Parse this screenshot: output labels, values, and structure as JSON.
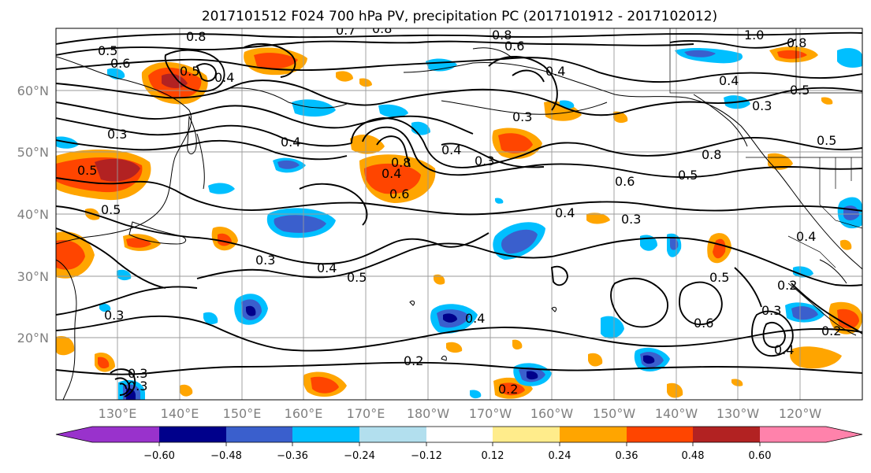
{
  "title": "2017101512 F024 700 hPa PV, precipitation PC (2017101912 - 2017102012)",
  "lat_labels": [
    "60°N",
    "50°N",
    "40°N",
    "30°N",
    "20°N"
  ],
  "lon_labels": [
    "130°E",
    "140°E",
    "150°E",
    "160°E",
    "170°E",
    "180°W",
    "170°W",
    "160°W",
    "150°W",
    "140°W",
    "130°W",
    "120°W"
  ],
  "colorbar": {
    "tick_labels": [
      "−0.60",
      "−0.48",
      "−0.36",
      "−0.24",
      "−0.12",
      "0.12",
      "0.24",
      "0.36",
      "0.48",
      "0.60"
    ],
    "colors": [
      "#9932cc",
      "#00008b",
      "#3a5fcd",
      "#00bfff",
      "#b2dfee",
      "#ffffff",
      "#ffec8b",
      "#ffa500",
      "#ff4500",
      "#b22222",
      "#ff82ab"
    ]
  },
  "contour_labels": [
    "0.8",
    "0.8",
    "0.7",
    "0.8",
    "1.0",
    "0.8",
    "0.5",
    "0.6",
    "0.4",
    "0.5",
    "0.6",
    "0.4",
    "0.5",
    "0.4",
    "0.3",
    "0.3",
    "0.5",
    "0.4",
    "0.5",
    "0.3",
    "0.4",
    "0.8",
    "0.3",
    "0.4",
    "0.8",
    "0.6",
    "0.6",
    "0.5",
    "0.5",
    "0.4",
    "0.3",
    "0.4",
    "0.3",
    "0.4",
    "0.5",
    "0.5",
    "0.2",
    "0.3",
    "0.6",
    "0.3",
    "0.4",
    "0.2",
    "0.4",
    "0.3",
    "0.3",
    "0.2",
    "0.2"
  ],
  "map_meta": {
    "projection": "cylindrical",
    "lon_range": "125°E to 115°W",
    "lat_range": "10°N to 70°N",
    "gridlines": true,
    "colorbar_position": "bottom"
  }
}
